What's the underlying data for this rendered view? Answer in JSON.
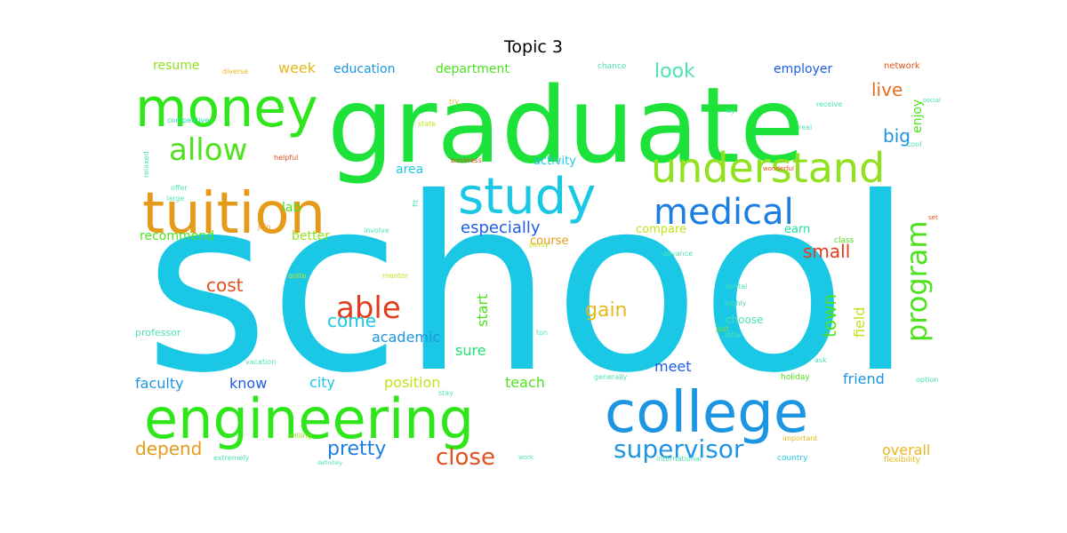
{
  "title": "Topic 3",
  "words": [
    {
      "text": "school",
      "color": "#1ac8e6"
    },
    {
      "text": "graduate",
      "color": "#1de23a"
    },
    {
      "text": "college",
      "color": "#1d95e2"
    },
    {
      "text": "engineering",
      "color": "#2ee61a"
    },
    {
      "text": "tuition",
      "color": "#e69a1a"
    },
    {
      "text": "money",
      "color": "#2ee61a"
    },
    {
      "text": "study",
      "color": "#1ac8e6"
    },
    {
      "text": "understand",
      "color": "#8fe21d"
    },
    {
      "text": "medical",
      "color": "#1d7ee2"
    },
    {
      "text": "allow",
      "color": "#4de21d"
    },
    {
      "text": "program",
      "color": "#4de21d"
    },
    {
      "text": "able",
      "color": "#e23b1d"
    },
    {
      "text": "supervisor",
      "color": "#1d95e2"
    },
    {
      "text": "close",
      "color": "#e2501d"
    },
    {
      "text": "pretty",
      "color": "#1d7ee2"
    },
    {
      "text": "depend",
      "color": "#e69a1a"
    },
    {
      "text": "gain",
      "color": "#e6b81a"
    },
    {
      "text": "come",
      "color": "#1ac8e6"
    },
    {
      "text": "cost",
      "color": "#e2501d"
    },
    {
      "text": "look",
      "color": "#4de2b5"
    },
    {
      "text": "big",
      "color": "#1d95e2"
    },
    {
      "text": "live",
      "color": "#e26f1d"
    },
    {
      "text": "town",
      "color": "#4de21d"
    },
    {
      "text": "small",
      "color": "#e23b1d"
    },
    {
      "text": "especially",
      "color": "#1d5de2"
    },
    {
      "text": "field",
      "color": "#c3e21d"
    },
    {
      "text": "friend",
      "color": "#1d95e2"
    },
    {
      "text": "overall",
      "color": "#e6b81a"
    },
    {
      "text": "position",
      "color": "#c3e21d"
    },
    {
      "text": "teach",
      "color": "#4de21d"
    },
    {
      "text": "city",
      "color": "#1dc8e2"
    },
    {
      "text": "know",
      "color": "#1d5de2"
    },
    {
      "text": "faculty",
      "color": "#1d95e2"
    },
    {
      "text": "academic",
      "color": "#1d95e2"
    },
    {
      "text": "start",
      "color": "#4de21d"
    },
    {
      "text": "sure",
      "color": "#1de26f"
    },
    {
      "text": "meet",
      "color": "#1d5de2"
    },
    {
      "text": "week",
      "color": "#e6b81a"
    },
    {
      "text": "education",
      "color": "#1d95e2"
    },
    {
      "text": "department",
      "color": "#4de21d"
    },
    {
      "text": "employer",
      "color": "#1d5de2"
    },
    {
      "text": "resume",
      "color": "#8fe21d"
    },
    {
      "text": "recommend",
      "color": "#4de21d"
    },
    {
      "text": "better",
      "color": "#8fe21d"
    },
    {
      "text": "area",
      "color": "#1dc8e2"
    },
    {
      "text": "lab",
      "color": "#4de21d"
    },
    {
      "text": "activity",
      "color": "#1dc8e2"
    },
    {
      "text": "compare",
      "color": "#c3e21d"
    },
    {
      "text": "earn",
      "color": "#1de2a6"
    },
    {
      "text": "course",
      "color": "#e69a1a"
    },
    {
      "text": "enjoy",
      "color": "#4de21d"
    },
    {
      "text": "choose",
      "color": "#4de2b5"
    },
    {
      "text": "professor",
      "color": "#4de2b5"
    },
    {
      "text": "network",
      "color": "#e2501d"
    },
    {
      "text": "class",
      "color": "#4de21d"
    },
    {
      "text": "holiday",
      "color": "#4de21d"
    },
    {
      "text": "country",
      "color": "#1dc8e2"
    },
    {
      "text": "diverse",
      "color": "#e6b81a"
    },
    {
      "text": "chance",
      "color": "#4de2b5"
    },
    {
      "text": "competitive",
      "color": "#1de2a6"
    },
    {
      "text": "relaxed",
      "color": "#4de2b5"
    },
    {
      "text": "helpful",
      "color": "#e2501d"
    },
    {
      "text": "offer",
      "color": "#4de2b5"
    },
    {
      "text": "large",
      "color": "#4de2b5"
    },
    {
      "text": "state",
      "color": "#c3e21d"
    },
    {
      "text": "business",
      "color": "#e2501d"
    },
    {
      "text": "receive",
      "color": "#4de2b5"
    },
    {
      "text": "real",
      "color": "#4de2b5"
    },
    {
      "text": "lay",
      "color": "#4de2b5"
    },
    {
      "text": "social",
      "color": "#4de2b5"
    },
    {
      "text": "cool",
      "color": "#4de2b5"
    },
    {
      "text": "join",
      "color": "#e69a1a"
    },
    {
      "text": "quite",
      "color": "#c3e21d"
    },
    {
      "text": "involve",
      "color": "#4de2b5"
    },
    {
      "text": "mentor",
      "color": "#c3e21d"
    },
    {
      "text": "advance",
      "color": "#4de2b5"
    },
    {
      "text": "highly",
      "color": "#4de2b5"
    },
    {
      "text": "dental",
      "color": "#4de2b5"
    },
    {
      "text": "little",
      "color": "#4de2b5"
    },
    {
      "text": "just",
      "color": "#8fe21d"
    },
    {
      "text": "ask",
      "color": "#4de2b5"
    },
    {
      "text": "generally",
      "color": "#4de2b5"
    },
    {
      "text": "stay",
      "color": "#4de2b5"
    },
    {
      "text": "vacation",
      "color": "#4de2b5"
    },
    {
      "text": "willing",
      "color": "#8fe21d"
    },
    {
      "text": "extremely",
      "color": "#4de2b5"
    },
    {
      "text": "international",
      "color": "#4de2b5"
    },
    {
      "text": "flexibility",
      "color": "#e6b81a"
    },
    {
      "text": "important",
      "color": "#e6b81a"
    },
    {
      "text": "option",
      "color": "#4de2b5"
    },
    {
      "text": "work",
      "color": "#4de2b5"
    },
    {
      "text": "ton",
      "color": "#4de2b5"
    },
    {
      "text": "definitely",
      "color": "#4de2b5"
    },
    {
      "text": "fit",
      "color": "#4de2b5"
    },
    {
      "text": "try",
      "color": "#e6b81a"
    },
    {
      "text": "set",
      "color": "#e2501d"
    },
    {
      "text": "wonderful",
      "color": "#e2501d"
    },
    {
      "text": "plenty",
      "color": "#c3e21d"
    }
  ]
}
